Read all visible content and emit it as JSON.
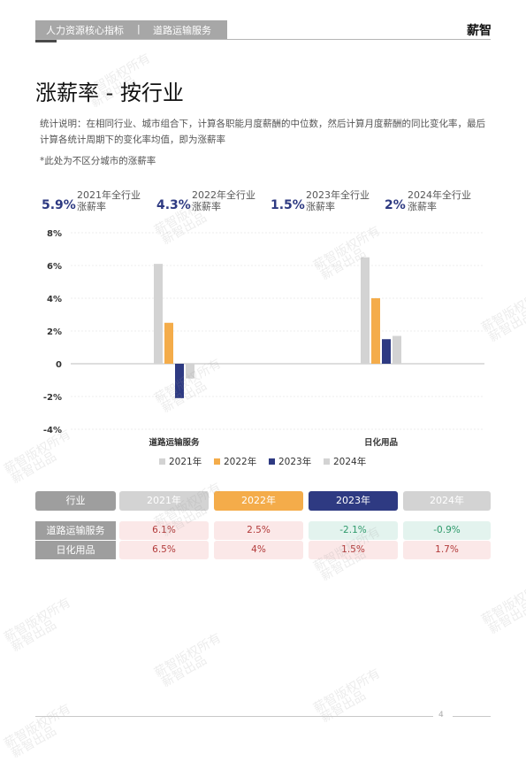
{
  "header": {
    "section": "人力资源核心指标",
    "subsection": "道路运输服务",
    "logo": "薪智"
  },
  "page_title": "涨薪率 - 按行业",
  "description": "统计说明：在相同行业、城市组合下，计算各职能月度薪酬的中位数，然后计算月度薪酬的同比变化率，最后计算各统计周期下的变化率均值，即为涨薪率",
  "note": "*此处为不区分城市的涨薪率",
  "kpis": [
    {
      "value": "5.9%",
      "label1": "2021年全行业",
      "label2": "涨薪率"
    },
    {
      "value": "4.3%",
      "label1": "2022年全行业",
      "label2": "涨薪率"
    },
    {
      "value": "1.5%",
      "label1": "2023年全行业",
      "label2": "涨薪率"
    },
    {
      "value": "2%",
      "label1": "2024年全行业",
      "label2": "涨薪率"
    }
  ],
  "chart_data": {
    "type": "bar",
    "categories": [
      "道路运输服务",
      "日化用品"
    ],
    "series": [
      {
        "name": "2021年",
        "values": [
          6.1,
          6.5
        ],
        "color": "#d3d3d3"
      },
      {
        "name": "2022年",
        "values": [
          2.5,
          4.0
        ],
        "color": "#f4ac4a"
      },
      {
        "name": "2023年",
        "values": [
          -2.1,
          1.5
        ],
        "color": "#2e3a82"
      },
      {
        "name": "2024年",
        "values": [
          -0.9,
          1.7
        ],
        "color": "#d3d3d3"
      }
    ],
    "yticks": [
      "8%",
      "6%",
      "4%",
      "2%",
      "0",
      "-2%",
      "-4%"
    ],
    "ylim": [
      -4,
      8
    ],
    "grid": true,
    "legend": "bottom"
  },
  "table": {
    "headers": [
      "行业",
      "2021年",
      "2022年",
      "2023年",
      "2024年"
    ],
    "header_colors": [
      "#9e9e9e",
      "#d3d3d3",
      "#f4ac4a",
      "#2e3a82",
      "#d3d3d3"
    ],
    "rows": [
      {
        "label": "道路运输服务",
        "values": [
          "6.1%",
          "2.5%",
          "-2.1%",
          "-0.9%"
        ],
        "positive": [
          true,
          true,
          false,
          false
        ]
      },
      {
        "label": "日化用品",
        "values": [
          "6.5%",
          "4%",
          "1.5%",
          "1.7%"
        ],
        "positive": [
          true,
          true,
          true,
          true
        ]
      }
    ]
  },
  "watermark": [
    "薪智版权所有",
    "薪智出品"
  ],
  "footer": {
    "page_number": "4"
  }
}
